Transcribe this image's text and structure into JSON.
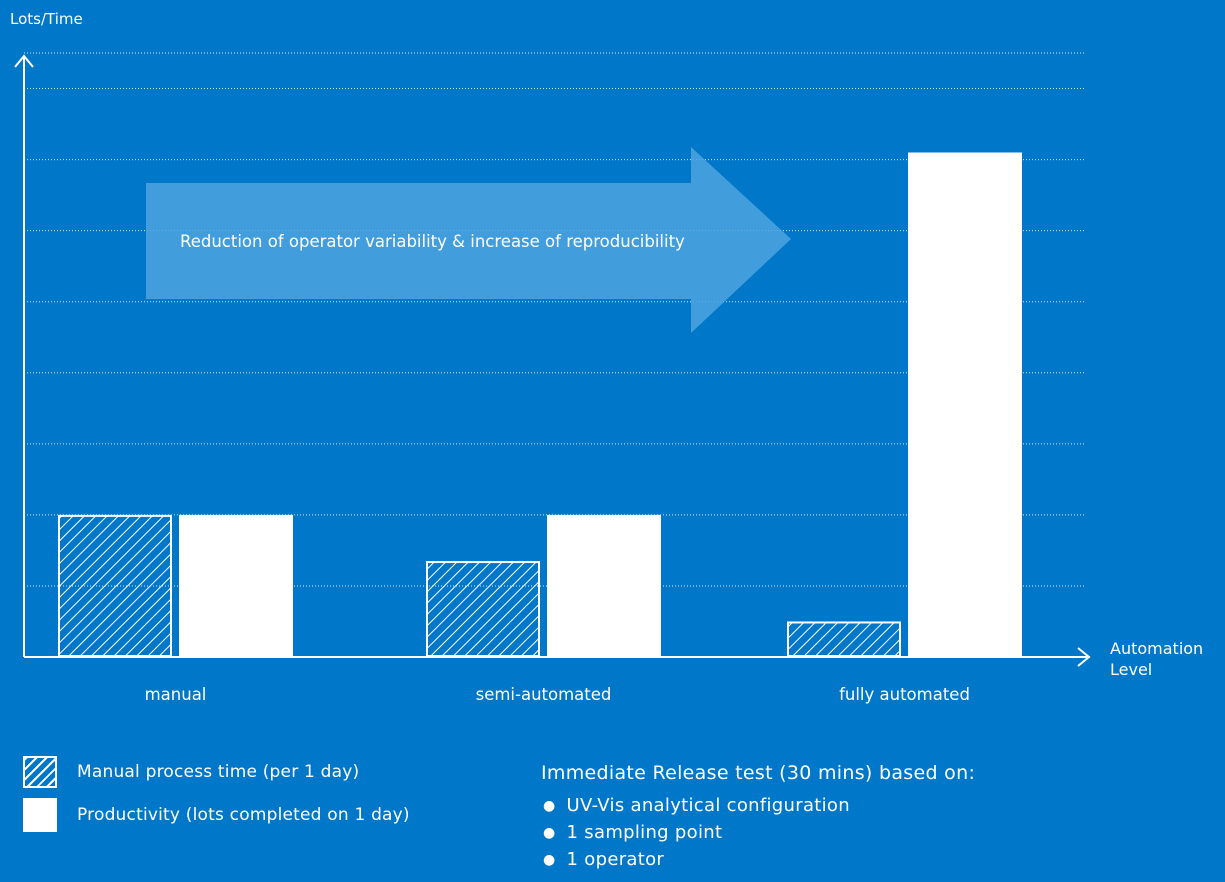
{
  "chart_data": {
    "type": "bar",
    "ylabel": "Lots/Time",
    "xlabel": "Automation Level",
    "xlabel_lines": [
      "Automation",
      "Level"
    ],
    "categories": [
      "manual",
      "semi-automated",
      "fully automated"
    ],
    "ylim": [
      0,
      8.5
    ],
    "grid": true,
    "y_ticks_labeled": false,
    "series": [
      {
        "name": "Manual process time (per 1 day)",
        "pattern": "hatched",
        "values": [
          2.0,
          1.35,
          0.5
        ]
      },
      {
        "name": "Productivity (lots completed on 1 day)",
        "pattern": "solid",
        "values": [
          2.0,
          2.0,
          7.1
        ]
      }
    ],
    "annotation": "Reduction of operator variability & increase of reproducibility"
  },
  "legend": {
    "items": [
      {
        "label": "Manual process time (per 1 day)",
        "pattern": "hatched"
      },
      {
        "label": "Productivity (lots completed on 1 day)",
        "pattern": "solid"
      }
    ]
  },
  "note": {
    "title": "Immediate Release test (30 mins) based on:",
    "items": [
      "UV-Vis analytical configuration",
      "1 sampling point",
      "1 operator"
    ]
  },
  "colors": {
    "background": "#0077c8",
    "bar": "#ffffff",
    "arrow": "#4ea3df"
  }
}
